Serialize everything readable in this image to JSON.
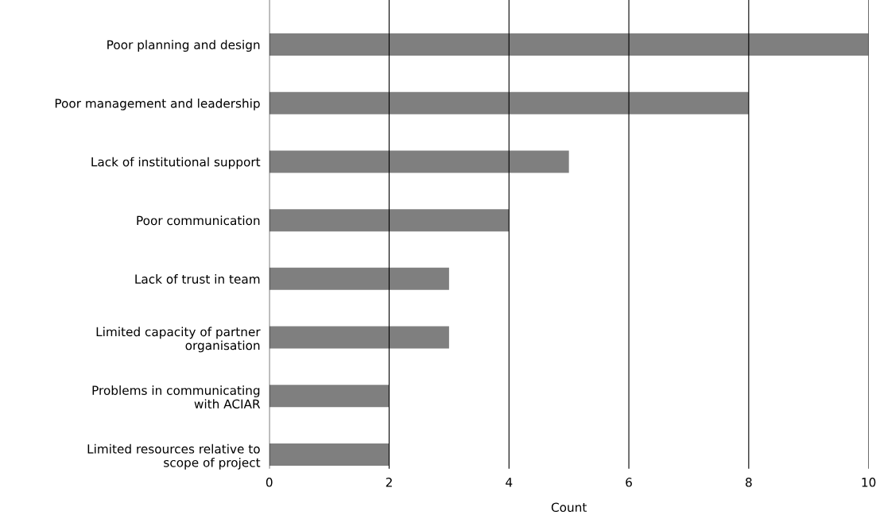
{
  "chart_data": {
    "type": "bar",
    "orientation": "horizontal",
    "xlabel": "Count",
    "categories": [
      "Poor planning and design",
      "Poor management and leadership",
      "Lack of institutional support",
      "Poor communication",
      "Lack of trust in team",
      "Limited capacity of partner\norganisation",
      "Problems in communicating\nwith ACIAR",
      "Limited resources relative to\nscope of project"
    ],
    "values": [
      10,
      8,
      5,
      4,
      3,
      3,
      2,
      2
    ],
    "color": "#7f7f7f",
    "xlim": [
      0,
      10
    ],
    "xticks": [
      0,
      2,
      4,
      6,
      8,
      10
    ],
    "grid": "x"
  }
}
